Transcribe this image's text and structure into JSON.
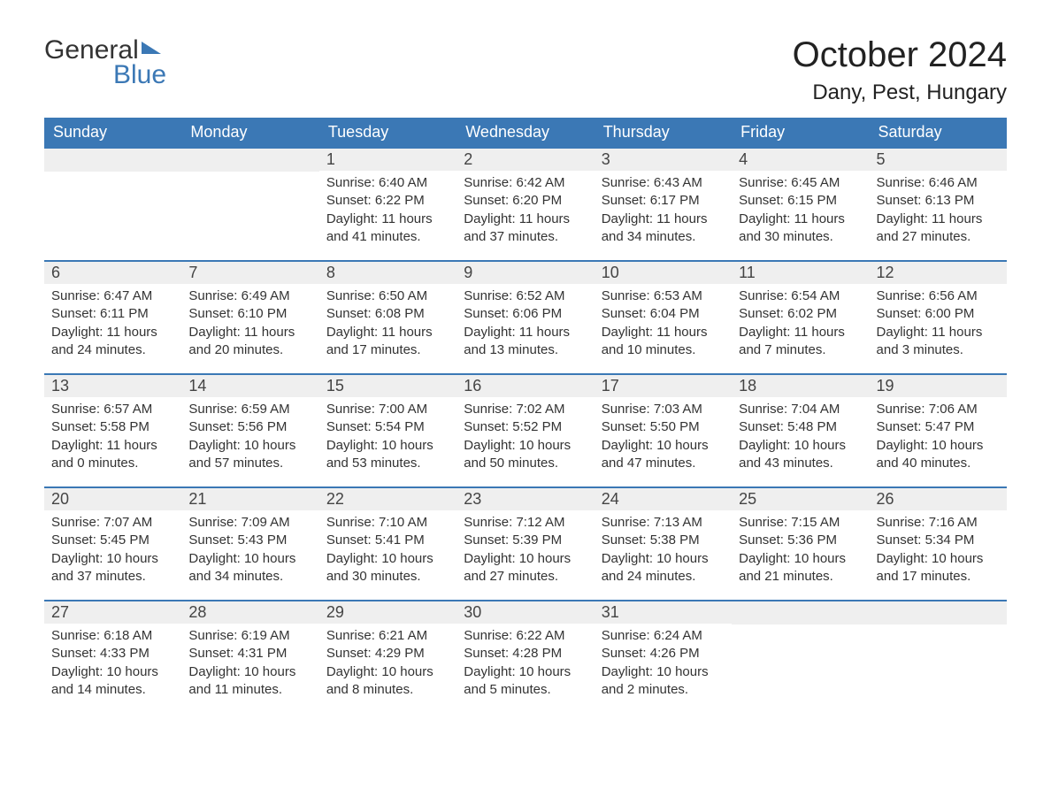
{
  "logo": {
    "word1": "General",
    "word2": "Blue"
  },
  "title": "October 2024",
  "location": "Dany, Pest, Hungary",
  "headers": [
    "Sunday",
    "Monday",
    "Tuesday",
    "Wednesday",
    "Thursday",
    "Friday",
    "Saturday"
  ],
  "colors": {
    "header_bg": "#3b78b5",
    "header_fg": "#ffffff",
    "daynum_bg": "#efefef",
    "daynum_border": "#3b78b5",
    "text": "#333333",
    "logo_blue": "#3b78b5"
  },
  "weeks": [
    [
      null,
      null,
      {
        "n": "1",
        "sr": "Sunrise: 6:40 AM",
        "ss": "Sunset: 6:22 PM",
        "d1": "Daylight: 11 hours",
        "d2": "and 41 minutes."
      },
      {
        "n": "2",
        "sr": "Sunrise: 6:42 AM",
        "ss": "Sunset: 6:20 PM",
        "d1": "Daylight: 11 hours",
        "d2": "and 37 minutes."
      },
      {
        "n": "3",
        "sr": "Sunrise: 6:43 AM",
        "ss": "Sunset: 6:17 PM",
        "d1": "Daylight: 11 hours",
        "d2": "and 34 minutes."
      },
      {
        "n": "4",
        "sr": "Sunrise: 6:45 AM",
        "ss": "Sunset: 6:15 PM",
        "d1": "Daylight: 11 hours",
        "d2": "and 30 minutes."
      },
      {
        "n": "5",
        "sr": "Sunrise: 6:46 AM",
        "ss": "Sunset: 6:13 PM",
        "d1": "Daylight: 11 hours",
        "d2": "and 27 minutes."
      }
    ],
    [
      {
        "n": "6",
        "sr": "Sunrise: 6:47 AM",
        "ss": "Sunset: 6:11 PM",
        "d1": "Daylight: 11 hours",
        "d2": "and 24 minutes."
      },
      {
        "n": "7",
        "sr": "Sunrise: 6:49 AM",
        "ss": "Sunset: 6:10 PM",
        "d1": "Daylight: 11 hours",
        "d2": "and 20 minutes."
      },
      {
        "n": "8",
        "sr": "Sunrise: 6:50 AM",
        "ss": "Sunset: 6:08 PM",
        "d1": "Daylight: 11 hours",
        "d2": "and 17 minutes."
      },
      {
        "n": "9",
        "sr": "Sunrise: 6:52 AM",
        "ss": "Sunset: 6:06 PM",
        "d1": "Daylight: 11 hours",
        "d2": "and 13 minutes."
      },
      {
        "n": "10",
        "sr": "Sunrise: 6:53 AM",
        "ss": "Sunset: 6:04 PM",
        "d1": "Daylight: 11 hours",
        "d2": "and 10 minutes."
      },
      {
        "n": "11",
        "sr": "Sunrise: 6:54 AM",
        "ss": "Sunset: 6:02 PM",
        "d1": "Daylight: 11 hours",
        "d2": "and 7 minutes."
      },
      {
        "n": "12",
        "sr": "Sunrise: 6:56 AM",
        "ss": "Sunset: 6:00 PM",
        "d1": "Daylight: 11 hours",
        "d2": "and 3 minutes."
      }
    ],
    [
      {
        "n": "13",
        "sr": "Sunrise: 6:57 AM",
        "ss": "Sunset: 5:58 PM",
        "d1": "Daylight: 11 hours",
        "d2": "and 0 minutes."
      },
      {
        "n": "14",
        "sr": "Sunrise: 6:59 AM",
        "ss": "Sunset: 5:56 PM",
        "d1": "Daylight: 10 hours",
        "d2": "and 57 minutes."
      },
      {
        "n": "15",
        "sr": "Sunrise: 7:00 AM",
        "ss": "Sunset: 5:54 PM",
        "d1": "Daylight: 10 hours",
        "d2": "and 53 minutes."
      },
      {
        "n": "16",
        "sr": "Sunrise: 7:02 AM",
        "ss": "Sunset: 5:52 PM",
        "d1": "Daylight: 10 hours",
        "d2": "and 50 minutes."
      },
      {
        "n": "17",
        "sr": "Sunrise: 7:03 AM",
        "ss": "Sunset: 5:50 PM",
        "d1": "Daylight: 10 hours",
        "d2": "and 47 minutes."
      },
      {
        "n": "18",
        "sr": "Sunrise: 7:04 AM",
        "ss": "Sunset: 5:48 PM",
        "d1": "Daylight: 10 hours",
        "d2": "and 43 minutes."
      },
      {
        "n": "19",
        "sr": "Sunrise: 7:06 AM",
        "ss": "Sunset: 5:47 PM",
        "d1": "Daylight: 10 hours",
        "d2": "and 40 minutes."
      }
    ],
    [
      {
        "n": "20",
        "sr": "Sunrise: 7:07 AM",
        "ss": "Sunset: 5:45 PM",
        "d1": "Daylight: 10 hours",
        "d2": "and 37 minutes."
      },
      {
        "n": "21",
        "sr": "Sunrise: 7:09 AM",
        "ss": "Sunset: 5:43 PM",
        "d1": "Daylight: 10 hours",
        "d2": "and 34 minutes."
      },
      {
        "n": "22",
        "sr": "Sunrise: 7:10 AM",
        "ss": "Sunset: 5:41 PM",
        "d1": "Daylight: 10 hours",
        "d2": "and 30 minutes."
      },
      {
        "n": "23",
        "sr": "Sunrise: 7:12 AM",
        "ss": "Sunset: 5:39 PM",
        "d1": "Daylight: 10 hours",
        "d2": "and 27 minutes."
      },
      {
        "n": "24",
        "sr": "Sunrise: 7:13 AM",
        "ss": "Sunset: 5:38 PM",
        "d1": "Daylight: 10 hours",
        "d2": "and 24 minutes."
      },
      {
        "n": "25",
        "sr": "Sunrise: 7:15 AM",
        "ss": "Sunset: 5:36 PM",
        "d1": "Daylight: 10 hours",
        "d2": "and 21 minutes."
      },
      {
        "n": "26",
        "sr": "Sunrise: 7:16 AM",
        "ss": "Sunset: 5:34 PM",
        "d1": "Daylight: 10 hours",
        "d2": "and 17 minutes."
      }
    ],
    [
      {
        "n": "27",
        "sr": "Sunrise: 6:18 AM",
        "ss": "Sunset: 4:33 PM",
        "d1": "Daylight: 10 hours",
        "d2": "and 14 minutes."
      },
      {
        "n": "28",
        "sr": "Sunrise: 6:19 AM",
        "ss": "Sunset: 4:31 PM",
        "d1": "Daylight: 10 hours",
        "d2": "and 11 minutes."
      },
      {
        "n": "29",
        "sr": "Sunrise: 6:21 AM",
        "ss": "Sunset: 4:29 PM",
        "d1": "Daylight: 10 hours",
        "d2": "and 8 minutes."
      },
      {
        "n": "30",
        "sr": "Sunrise: 6:22 AM",
        "ss": "Sunset: 4:28 PM",
        "d1": "Daylight: 10 hours",
        "d2": "and 5 minutes."
      },
      {
        "n": "31",
        "sr": "Sunrise: 6:24 AM",
        "ss": "Sunset: 4:26 PM",
        "d1": "Daylight: 10 hours",
        "d2": "and 2 minutes."
      },
      null,
      null
    ]
  ]
}
